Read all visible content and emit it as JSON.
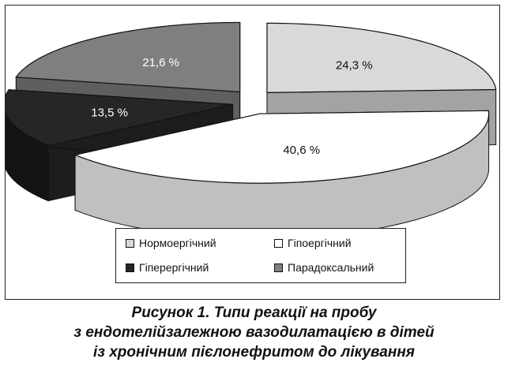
{
  "chart_data": {
    "type": "pie",
    "style": "3d-exploded",
    "categories": [
      "Нормоергічний",
      "Гіпоергічний",
      "Гіперергічний",
      "Парадоксальний"
    ],
    "values": [
      24.3,
      40.6,
      13.5,
      21.6
    ],
    "value_labels": [
      "24,3 %",
      "40,6 %",
      "13,5 %",
      "21,6 %"
    ],
    "colors": [
      "#d9d9d9",
      "#ffffff",
      "#262626",
      "#7f7f7f"
    ],
    "legend_position": "bottom",
    "title": ""
  },
  "legend": {
    "items": [
      {
        "label": "Нормоергічний",
        "color": "#d9d9d9"
      },
      {
        "label": "Гіпоергічний",
        "color": "#ffffff"
      },
      {
        "label": "Гіперергічний",
        "color": "#262626"
      },
      {
        "label": "Парадоксальний",
        "color": "#7f7f7f"
      }
    ]
  },
  "caption": {
    "line1": "Рисунок 1. Типи реакції на пробу",
    "line2": "з ендотелійзалежною вазодилатацією в дітей",
    "line3": "із хронічним пієлонефритом до лікування"
  }
}
